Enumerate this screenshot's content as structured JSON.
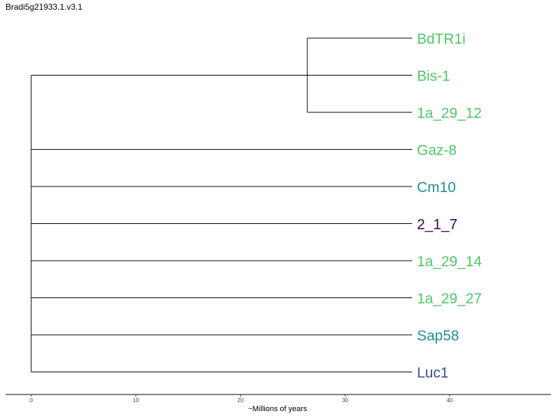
{
  "title": "Bradi5g21933.1.v3.1",
  "axis": {
    "label": "~Millions of years",
    "ticks": [
      "0",
      "10",
      "20",
      "30",
      "40"
    ]
  },
  "tree": {
    "tips": [
      {
        "name": "BdTR1i",
        "color": "#53c569",
        "clade": "a"
      },
      {
        "name": "Bis-1",
        "color": "#53c569",
        "clade": "a"
      },
      {
        "name": "1a_29_12",
        "color": "#53c569",
        "clade": "a"
      },
      {
        "name": "Gaz-8",
        "color": "#53c569"
      },
      {
        "name": "Cm10",
        "color": "#22908c"
      },
      {
        "name": "2_1_7",
        "color": "#440154"
      },
      {
        "name": "1a_29_14",
        "color": "#53c569"
      },
      {
        "name": "1a_29_27",
        "color": "#53c569"
      },
      {
        "name": "Sap58",
        "color": "#22908c"
      },
      {
        "name": "Luc1",
        "color": "#3b528b"
      }
    ]
  }
}
